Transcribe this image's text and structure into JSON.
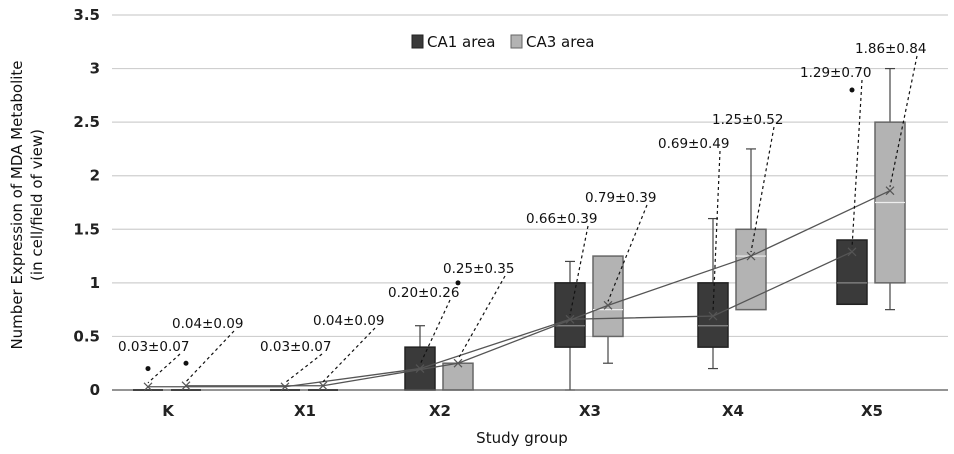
{
  "chart_data": {
    "type": "boxplot",
    "title": "",
    "xlabel": "Study group",
    "ylabel": "Number Expression of MDA Metabolite",
    "ylabel_sub": "(in cell/field of view)",
    "ylim": [
      0,
      3.5
    ],
    "yticks": [
      "0",
      "0.5",
      "1",
      "1.5",
      "2",
      "2.5",
      "3",
      "3.5"
    ],
    "grid": true,
    "legend_position": "top-center",
    "categories": [
      "K",
      "X1",
      "X2",
      "X3",
      "X4",
      "X5"
    ],
    "series": [
      {
        "name": "CA1 area",
        "color": "#3a3a3a",
        "mean_line_color": "#555555",
        "boxes": [
          {
            "min": 0,
            "q1": 0,
            "median": 0,
            "q3": 0,
            "max": 0,
            "mean": 0.03,
            "outliers": [
              0.2
            ],
            "label": "0.03±0.07"
          },
          {
            "min": 0,
            "q1": 0,
            "median": 0,
            "q3": 0,
            "max": 0,
            "mean": 0.03,
            "outliers": [],
            "label": "0.03±0.07"
          },
          {
            "min": 0,
            "q1": 0,
            "median": 0,
            "q3": 0.4,
            "max": 0.6,
            "mean": 0.2,
            "outliers": [],
            "label": "0.20±0.26"
          },
          {
            "min": 0,
            "q1": 0.4,
            "median": 0.6,
            "q3": 1.0,
            "max": 1.2,
            "mean": 0.66,
            "outliers": [],
            "label": "0.66±0.39"
          },
          {
            "min": 0.2,
            "q1": 0.4,
            "median": 0.6,
            "q3": 1.0,
            "max": 1.6,
            "mean": 0.69,
            "outliers": [],
            "label": "0.69±0.49"
          },
          {
            "min": 0.8,
            "q1": 0.8,
            "median": 1.0,
            "q3": 1.4,
            "max": 1.4,
            "mean": 1.29,
            "outliers": [
              2.8
            ],
            "label": "1.29±0.70"
          }
        ]
      },
      {
        "name": "CA3 area",
        "color": "#b3b3b3",
        "mean_line_color": "#555555",
        "boxes": [
          {
            "min": 0,
            "q1": 0,
            "median": 0,
            "q3": 0,
            "max": 0,
            "mean": 0.04,
            "outliers": [
              0.25
            ],
            "label": "0.04±0.09"
          },
          {
            "min": 0,
            "q1": 0,
            "median": 0,
            "q3": 0,
            "max": 0,
            "mean": 0.04,
            "outliers": [],
            "label": "0.04±0.09"
          },
          {
            "min": 0,
            "q1": 0,
            "median": 0,
            "q3": 0.25,
            "max": 0.25,
            "mean": 0.25,
            "outliers": [
              1.0
            ],
            "label": "0.25±0.35"
          },
          {
            "min": 0.25,
            "q1": 0.5,
            "median": 0.75,
            "q3": 1.25,
            "max": 1.25,
            "mean": 0.79,
            "outliers": [],
            "label": "0.79±0.39"
          },
          {
            "min": 0.75,
            "q1": 0.75,
            "median": 1.25,
            "q3": 1.5,
            "max": 2.25,
            "mean": 1.25,
            "outliers": [],
            "label": "1.25±0.52"
          },
          {
            "min": 0.75,
            "q1": 1.0,
            "median": 1.75,
            "q3": 2.5,
            "max": 3.0,
            "mean": 1.86,
            "outliers": [],
            "label": "1.86±0.84"
          }
        ]
      }
    ]
  }
}
